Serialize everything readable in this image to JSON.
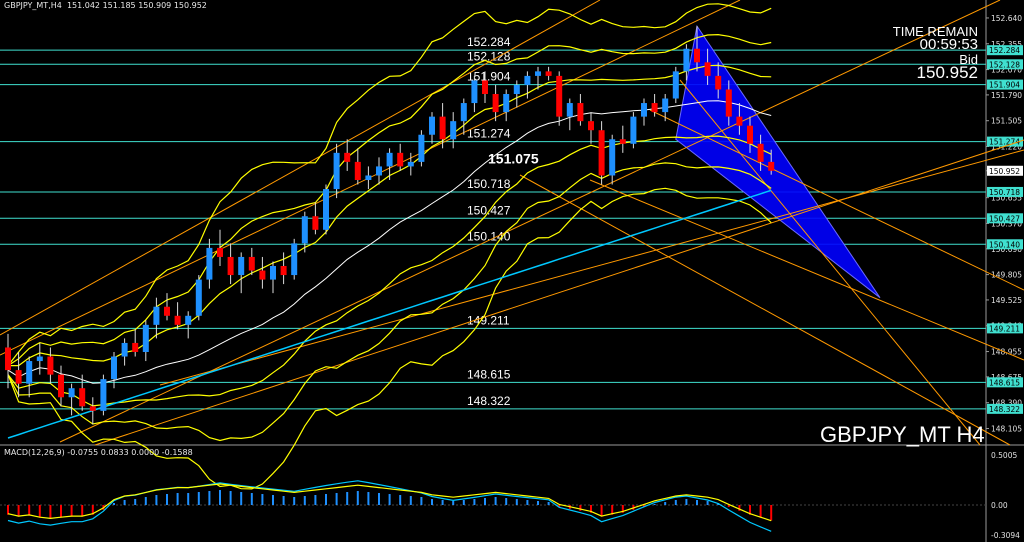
{
  "header": {
    "symbol_tf": "GBPJPY_MT,H4",
    "ohlc": "151.042 151.185 150.909 150.952"
  },
  "info": {
    "time_label": "TIME REMAIN",
    "time_value": "00:59:53",
    "bid_label": "Bid",
    "bid_value": "150.952"
  },
  "watermark": "GBPJPY_MT H4",
  "macd_header": "MACD(12,26,9) -0.0755 0.0833 0.0000 -0.1588",
  "colors": {
    "background": "#000000",
    "bull": "#1e90ff",
    "bear": "#ff0000",
    "level": "#40e0d0",
    "trend": "#ff9900",
    "band": "#ffff00",
    "ma_long": "#00c8ff",
    "triangle": "#0000ff"
  },
  "chart_data": {
    "type": "candlestick",
    "symbol": "GBPJPY_MT",
    "timeframe": "H4",
    "ylim": [
      148.0,
      152.75
    ],
    "y_ticks": [
      "152.640",
      "152.355",
      "152.070",
      "151.790",
      "151.505",
      "151.220",
      "150.952",
      "150.655",
      "150.370",
      "150.090",
      "149.805",
      "149.525",
      "149.240",
      "148.955",
      "148.675",
      "148.390",
      "148.105"
    ],
    "levels": [
      {
        "value": 152.284,
        "label": "152.284",
        "tag": "152.284"
      },
      {
        "value": 152.128,
        "label": "152.128",
        "tag": "152.128"
      },
      {
        "value": 151.904,
        "label": "151.904",
        "tag": "151.904"
      },
      {
        "value": 151.274,
        "label": "151.274",
        "tag": "151.274"
      },
      {
        "value": 150.718,
        "label": "150.718",
        "tag": "150.718"
      },
      {
        "value": 150.427,
        "label": "150.427",
        "tag": "150.427"
      },
      {
        "value": 150.14,
        "label": "150.140",
        "tag": "150.140"
      },
      {
        "value": 149.211,
        "label": "149.211",
        "tag": "149.211"
      },
      {
        "value": 148.615,
        "label": "148.615",
        "tag": "148.615"
      },
      {
        "value": 148.322,
        "label": "148.322",
        "tag": "148.322"
      }
    ],
    "current_price": {
      "value": 150.952,
      "label": "150.952"
    },
    "annotation": {
      "value": 151.075,
      "label": "151.075"
    },
    "candles": [
      [
        149.0,
        149.15,
        148.55,
        148.75
      ],
      [
        148.75,
        148.95,
        148.45,
        148.6
      ],
      [
        148.6,
        148.9,
        148.45,
        148.85
      ],
      [
        148.85,
        149.05,
        148.7,
        148.9
      ],
      [
        148.9,
        149.0,
        148.6,
        148.7
      ],
      [
        148.7,
        148.8,
        148.35,
        148.45
      ],
      [
        148.45,
        148.6,
        148.25,
        148.55
      ],
      [
        148.55,
        148.7,
        148.3,
        148.35
      ],
      [
        148.35,
        148.45,
        148.15,
        148.3
      ],
      [
        148.3,
        148.7,
        148.25,
        148.65
      ],
      [
        148.65,
        148.95,
        148.55,
        148.9
      ],
      [
        148.9,
        149.1,
        148.8,
        149.05
      ],
      [
        149.05,
        149.2,
        148.9,
        148.95
      ],
      [
        148.95,
        149.3,
        148.85,
        149.25
      ],
      [
        149.25,
        149.55,
        149.1,
        149.45
      ],
      [
        149.45,
        149.6,
        149.3,
        149.35
      ],
      [
        149.35,
        149.5,
        149.2,
        149.25
      ],
      [
        149.25,
        149.4,
        149.1,
        149.35
      ],
      [
        149.35,
        149.8,
        149.3,
        149.75
      ],
      [
        149.75,
        150.2,
        149.65,
        150.1
      ],
      [
        150.1,
        150.3,
        149.9,
        150.0
      ],
      [
        150.0,
        150.15,
        149.7,
        149.8
      ],
      [
        149.8,
        150.05,
        149.6,
        150.0
      ],
      [
        150.0,
        150.1,
        149.8,
        149.85
      ],
      [
        149.85,
        150.0,
        149.65,
        149.75
      ],
      [
        149.75,
        149.95,
        149.6,
        149.9
      ],
      [
        149.9,
        150.05,
        149.7,
        149.8
      ],
      [
        149.8,
        150.2,
        149.75,
        150.15
      ],
      [
        150.15,
        150.5,
        150.05,
        150.45
      ],
      [
        150.45,
        150.6,
        150.25,
        150.3
      ],
      [
        150.3,
        150.8,
        150.25,
        150.75
      ],
      [
        150.75,
        151.25,
        150.65,
        151.15
      ],
      [
        151.15,
        151.3,
        150.95,
        151.05
      ],
      [
        151.05,
        151.2,
        150.8,
        150.85
      ],
      [
        150.85,
        151.0,
        150.75,
        150.9
      ],
      [
        150.9,
        151.1,
        150.8,
        151.0
      ],
      [
        151.0,
        151.2,
        150.85,
        151.15
      ],
      [
        151.15,
        151.25,
        150.95,
        151.0
      ],
      [
        151.0,
        151.15,
        150.9,
        151.05
      ],
      [
        151.05,
        151.4,
        151.0,
        151.35
      ],
      [
        151.35,
        151.6,
        151.25,
        151.55
      ],
      [
        151.55,
        151.7,
        151.2,
        151.3
      ],
      [
        151.3,
        151.6,
        151.2,
        151.5
      ],
      [
        151.5,
        151.75,
        151.35,
        151.7
      ],
      [
        151.7,
        152.0,
        151.6,
        151.95
      ],
      [
        151.95,
        152.05,
        151.7,
        151.8
      ],
      [
        151.8,
        151.9,
        151.5,
        151.6
      ],
      [
        151.6,
        151.85,
        151.5,
        151.8
      ],
      [
        151.8,
        151.95,
        151.65,
        151.9
      ],
      [
        151.9,
        152.05,
        151.75,
        152.0
      ],
      [
        152.0,
        152.1,
        151.85,
        152.05
      ],
      [
        152.05,
        152.1,
        151.95,
        152.0
      ],
      [
        152.0,
        152.05,
        151.45,
        151.55
      ],
      [
        151.55,
        151.75,
        151.4,
        151.7
      ],
      [
        151.7,
        151.8,
        151.45,
        151.5
      ],
      [
        151.5,
        151.6,
        151.25,
        151.4
      ],
      [
        151.4,
        151.5,
        150.8,
        150.9
      ],
      [
        150.9,
        151.35,
        150.8,
        151.3
      ],
      [
        151.3,
        151.45,
        151.15,
        151.25
      ],
      [
        151.25,
        151.6,
        151.2,
        151.55
      ],
      [
        151.55,
        151.75,
        151.45,
        151.7
      ],
      [
        151.7,
        151.8,
        151.55,
        151.6
      ],
      [
        151.6,
        151.8,
        151.5,
        151.75
      ],
      [
        151.75,
        152.1,
        151.7,
        152.05
      ],
      [
        152.05,
        152.35,
        151.95,
        152.3
      ],
      [
        152.3,
        152.55,
        152.05,
        152.15
      ],
      [
        152.15,
        152.3,
        151.9,
        152.0
      ],
      [
        152.0,
        152.15,
        151.75,
        151.85
      ],
      [
        151.85,
        151.95,
        151.45,
        151.55
      ],
      [
        151.55,
        151.7,
        151.35,
        151.45
      ],
      [
        151.45,
        151.55,
        151.15,
        151.25
      ],
      [
        151.25,
        151.35,
        150.95,
        151.05
      ],
      [
        151.05,
        151.185,
        150.909,
        150.952
      ]
    ],
    "macd": {
      "title": "MACD(12,26,9)",
      "values": {
        "macd": -0.0755,
        "signal": 0.0833,
        "zero": 0.0,
        "hist": -0.1588
      },
      "y_ticks": [
        "0.5005",
        "0.00",
        "-0.3094"
      ],
      "ylim": [
        -0.3094,
        0.5005
      ],
      "histogram": [
        -0.1,
        -0.12,
        -0.11,
        -0.13,
        -0.14,
        -0.13,
        -0.12,
        -0.12,
        -0.1,
        -0.05,
        0.02,
        0.05,
        0.06,
        0.08,
        0.1,
        0.11,
        0.12,
        0.12,
        0.13,
        0.14,
        0.15,
        0.14,
        0.13,
        0.12,
        0.11,
        0.1,
        0.09,
        0.08,
        0.09,
        0.1,
        0.11,
        0.12,
        0.13,
        0.14,
        0.13,
        0.12,
        0.11,
        0.1,
        0.09,
        0.08,
        0.06,
        0.05,
        0.04,
        0.05,
        0.06,
        0.07,
        0.08,
        0.07,
        0.06,
        0.05,
        0.04,
        0.03,
        -0.02,
        -0.04,
        -0.06,
        -0.08,
        -0.12,
        -0.1,
        -0.08,
        -0.05,
        -0.02,
        0.01,
        0.03,
        0.05,
        0.06,
        0.05,
        0.04,
        0.02,
        -0.02,
        -0.06,
        -0.1,
        -0.13,
        -0.16
      ]
    }
  }
}
